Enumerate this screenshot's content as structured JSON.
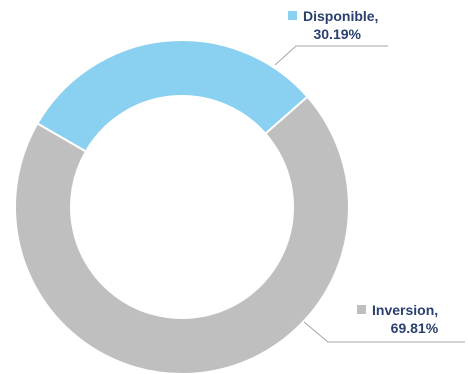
{
  "chart_data": {
    "type": "pie",
    "subtype": "donut",
    "title": "",
    "slices": [
      {
        "label": "Disponible,",
        "value": 30.19,
        "value_label": "30.19%",
        "color": "#8ad0f0"
      },
      {
        "label": "Inversion,",
        "value": 69.81,
        "value_label": "69.81%",
        "color": "#bfbfbf"
      }
    ],
    "legend": "none",
    "leader_line_color": "#a6a6a6",
    "label_color": "#2b3f6e"
  }
}
